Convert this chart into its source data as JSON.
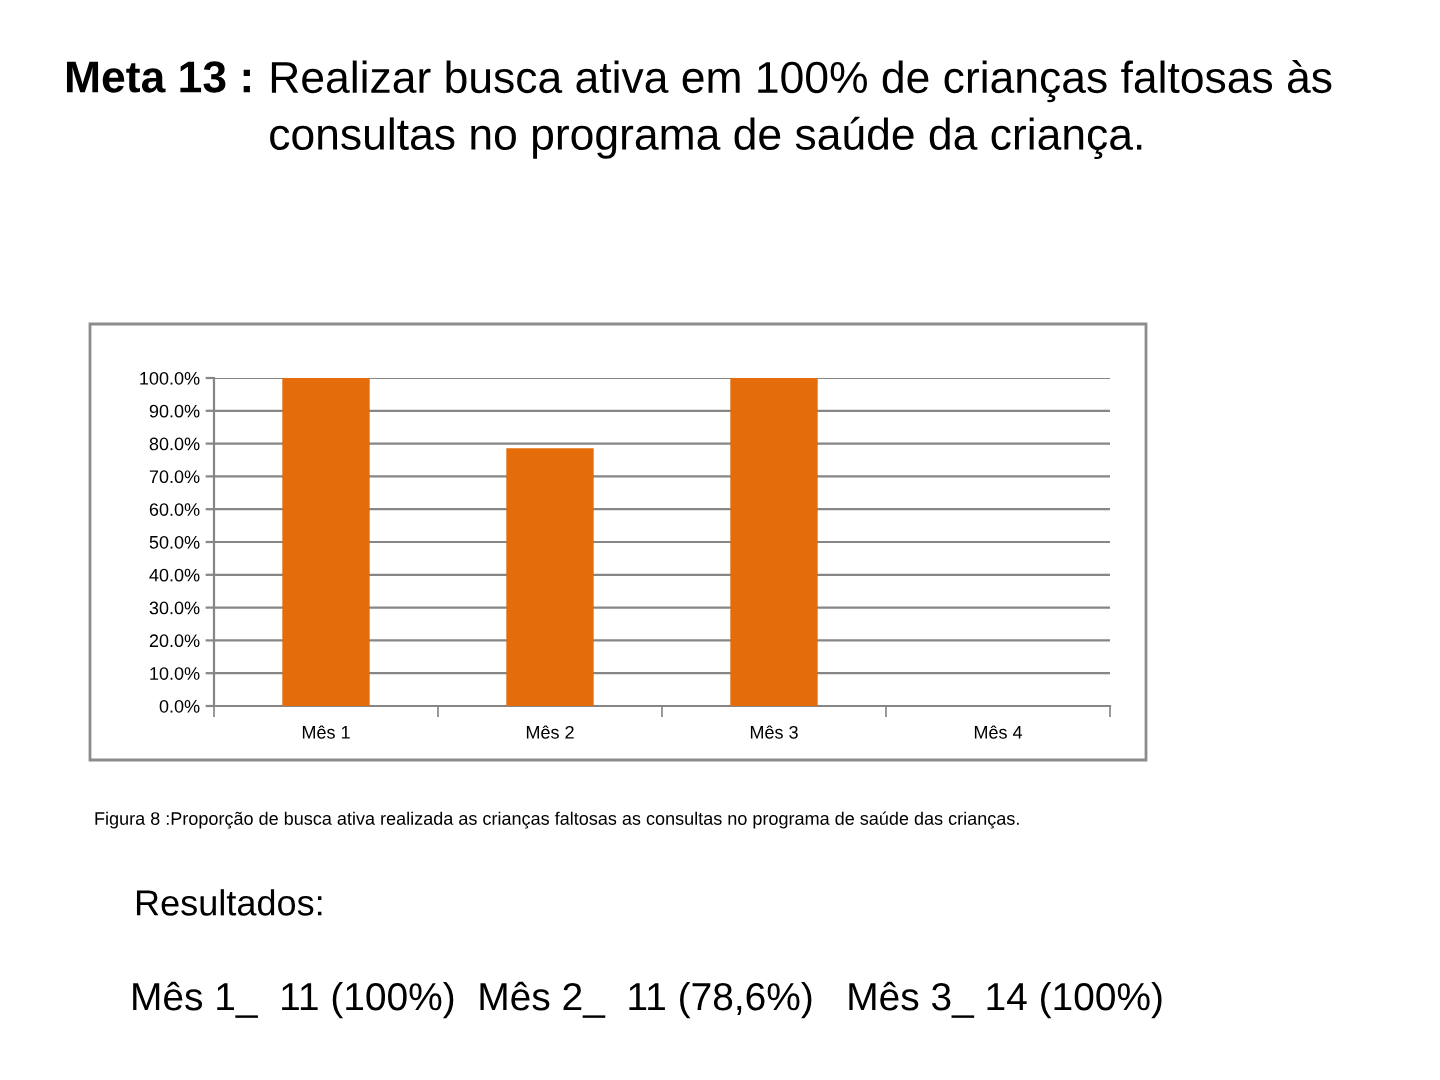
{
  "chart_data": {
    "type": "bar",
    "title": "Meta 13 :",
    "subtitle": "Realizar busca ativa em 100% de crianças faltosas às consultas no programa de saúde da criança.",
    "categories": [
      "Mês 1",
      "Mês 2",
      "Mês 3",
      "Mês 4"
    ],
    "values": [
      100,
      78.6,
      100,
      null
    ],
    "color": "#e46c0a",
    "ylim": [
      0,
      100
    ],
    "yticks": [
      {
        "value": 0,
        "label": "0.0%"
      },
      {
        "value": 10,
        "label": "10.0%"
      },
      {
        "value": 20,
        "label": "20.0%"
      },
      {
        "value": 30,
        "label": "30.0%"
      },
      {
        "value": 40,
        "label": "40.0%"
      },
      {
        "value": 50,
        "label": "50.0%"
      },
      {
        "value": 60,
        "label": "60.0%"
      },
      {
        "value": 70,
        "label": "70.0%"
      },
      {
        "value": 80,
        "label": "80.0%"
      },
      {
        "value": 90,
        "label": "90.0%"
      },
      {
        "value": 100,
        "label": "100.0%"
      }
    ],
    "grid": "y",
    "annotations": [
      "Figura 8 :Proporção de busca ativa realizada as crianças faltosas as consultas no programa de saúde das crianças.",
      "Resultados:",
      "Mês 1_  11 (100%)  Mês 2_  11 (78,6%)   Mês 3_ 14 (100%)"
    ]
  }
}
